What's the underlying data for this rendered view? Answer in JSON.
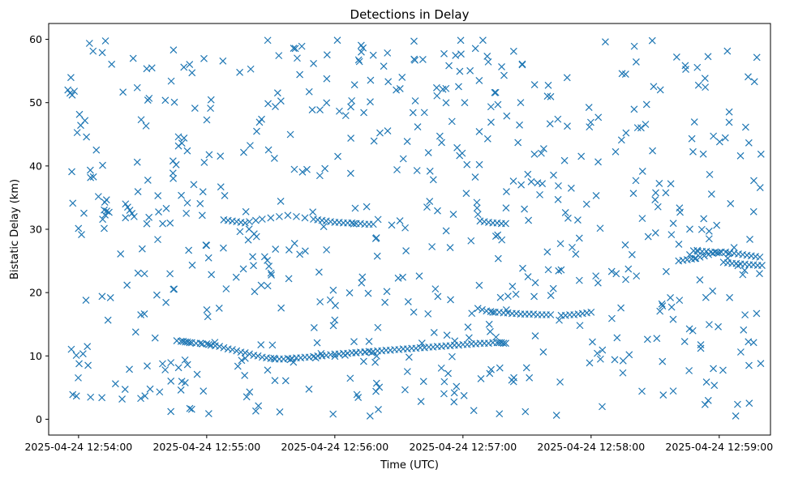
{
  "chart_data": {
    "type": "scatter",
    "title": "Detections in Delay",
    "xlabel": "Time (UTC)",
    "ylabel": "Bistatic Delay (km)",
    "x_unit": "seconds after 2025-04-24 12:54:00",
    "xlim": [
      -14,
      324
    ],
    "ylim": [
      -2.5,
      62.5
    ],
    "grid": false,
    "marker": "x",
    "color": "#1f77b4",
    "x_ticks": [
      0,
      60,
      120,
      180,
      240,
      300
    ],
    "x_tick_labels": [
      "2025-04-24 12:54:00",
      "2025-04-24 12:55:00",
      "2025-04-24 12:56:00",
      "2025-04-24 12:57:00",
      "2025-04-24 12:58:00",
      "2025-04-24 12:59:00"
    ],
    "y_ticks": [
      0,
      10,
      20,
      30,
      40,
      50,
      60
    ],
    "y_tick_labels": [
      "0",
      "10",
      "20",
      "30",
      "40",
      "50",
      "60"
    ],
    "tracks": [
      {
        "name": "track-a",
        "x": [
          46,
          48,
          49,
          50,
          51,
          52,
          53,
          55,
          57,
          58,
          60,
          61,
          62,
          64,
          66,
          68,
          70,
          72,
          74,
          76,
          78,
          80,
          82,
          84,
          86,
          88,
          90,
          92,
          94,
          96,
          98,
          100,
          102,
          104,
          106,
          108,
          110,
          112,
          114,
          116,
          118,
          120,
          122,
          124,
          126,
          128,
          130,
          132,
          134,
          136,
          138,
          140,
          142,
          144,
          146,
          148,
          150,
          152,
          154,
          156,
          158,
          160,
          162,
          164,
          166,
          168,
          170,
          172,
          174,
          176,
          178,
          180,
          182,
          184,
          186,
          188,
          190,
          192,
          194,
          196,
          197,
          198,
          199,
          200
        ],
        "y": [
          12.4,
          12.3,
          12.3,
          12.2,
          12.2,
          12.1,
          12.1,
          12.0,
          12.0,
          11.9,
          11.9,
          11.8,
          11.7,
          11.6,
          11.5,
          11.3,
          11.1,
          11.0,
          10.8,
          10.6,
          10.5,
          10.3,
          10.1,
          10.0,
          9.8,
          9.7,
          9.6,
          9.5,
          9.5,
          9.5,
          9.6,
          9.6,
          9.7,
          9.7,
          9.8,
          9.8,
          9.9,
          10.0,
          10.0,
          10.1,
          10.2,
          10.3,
          10.3,
          10.4,
          10.4,
          10.5,
          10.5,
          10.6,
          10.6,
          10.7,
          10.7,
          10.8,
          10.8,
          10.9,
          10.9,
          11.0,
          11.0,
          11.1,
          11.1,
          11.2,
          11.2,
          11.3,
          11.3,
          11.4,
          11.4,
          11.5,
          11.5,
          11.6,
          11.6,
          11.7,
          11.7,
          11.8,
          11.8,
          11.9,
          11.9,
          12.0,
          12.0,
          12.0,
          12.1,
          12.1,
          12.1,
          12.1,
          12.0,
          12.0
        ]
      },
      {
        "name": "track-b",
        "x": [
          68,
          70,
          72,
          74,
          76,
          78,
          80,
          83,
          86,
          90,
          94,
          98,
          102,
          106,
          110,
          112,
          114,
          116,
          118,
          120,
          122,
          124,
          126,
          128,
          130,
          132,
          134,
          136,
          138
        ],
        "y": [
          31.5,
          31.4,
          31.3,
          31.2,
          31.1,
          31.0,
          31.2,
          31.4,
          31.6,
          31.8,
          32.0,
          32.2,
          32.0,
          31.8,
          31.6,
          31.5,
          31.4,
          31.3,
          31.2,
          31.1,
          31.1,
          31.0,
          31.0,
          31.0,
          30.9,
          30.9,
          30.8,
          30.8,
          30.8
        ]
      },
      {
        "name": "track-c",
        "x": [
          187,
          189,
          191,
          193,
          195,
          197,
          199,
          201,
          203,
          205,
          207,
          209,
          211,
          213,
          215,
          217,
          219,
          221
        ],
        "y": [
          17.5,
          17.3,
          17.1,
          17.0,
          16.9,
          16.9,
          16.8,
          16.8,
          16.7,
          16.7,
          16.6,
          16.6,
          16.6,
          16.6,
          16.5,
          16.5,
          16.5,
          16.5
        ]
      },
      {
        "name": "track-d",
        "x": [
          226,
          228,
          230,
          232,
          234,
          236,
          238,
          240
        ],
        "y": [
          16.4,
          16.4,
          16.5,
          16.5,
          16.6,
          16.7,
          16.8,
          16.9
        ]
      },
      {
        "name": "track-e",
        "x": [
          188,
          190,
          192,
          194,
          196,
          198,
          200
        ],
        "y": [
          31.3,
          31.2,
          31.1,
          31.0,
          31.0,
          30.9,
          30.9
        ]
      },
      {
        "name": "track-f",
        "x": [
          281,
          283,
          285,
          287,
          289,
          291,
          293,
          295,
          297,
          299,
          301,
          303,
          305,
          307,
          309,
          311,
          313,
          315,
          317,
          319
        ],
        "y": [
          25.0,
          25.1,
          25.2,
          25.3,
          25.4,
          25.6,
          25.8,
          26.0,
          26.2,
          26.3,
          26.4,
          26.4,
          26.3,
          26.2,
          26.1,
          26.0,
          25.9,
          25.8,
          25.7,
          25.6
        ]
      },
      {
        "name": "track-g",
        "x": [
          288,
          290,
          292,
          294,
          296,
          298,
          300,
          302,
          304,
          306,
          308,
          310,
          312,
          314,
          316,
          318,
          320
        ],
        "y": [
          26.6,
          26.5,
          26.5,
          26.5,
          26.4,
          26.4,
          26.3,
          24.8,
          24.7,
          24.6,
          24.6,
          24.5,
          24.5,
          24.4,
          24.4,
          24.3,
          24.3
        ]
      },
      {
        "name": "track-h",
        "x": [
          -5,
          -4,
          -3,
          -2
        ],
        "y": [
          52.0,
          51.5,
          51.2,
          51.8
        ]
      },
      {
        "name": "track-i",
        "x": [
          22,
          23,
          24,
          25,
          26
        ],
        "y": [
          34.0,
          33.5,
          33.0,
          32.5,
          32.0
        ]
      }
    ],
    "noise_count": 640,
    "noise_seed": 20250424,
    "noise_xlim": [
      -5,
      320
    ],
    "noise_ylim": [
      0.5,
      60
    ]
  }
}
